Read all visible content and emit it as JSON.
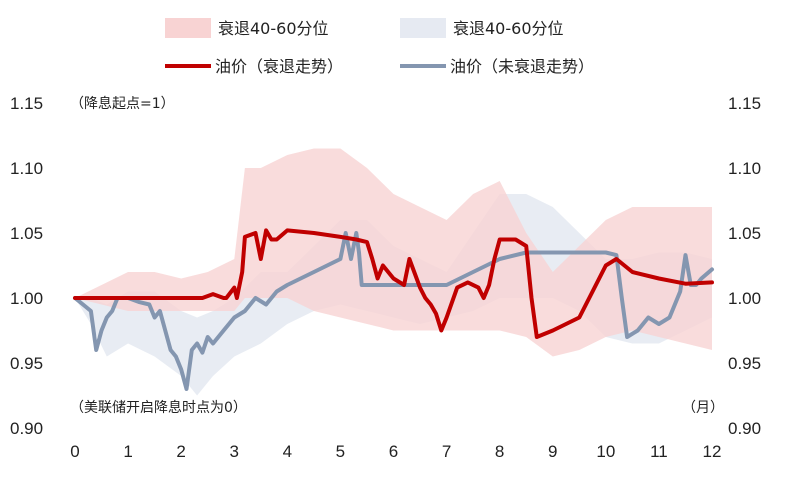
{
  "chart_data": {
    "type": "area",
    "title": "",
    "xlabel": "",
    "ylabel": "",
    "x_unit_label": "（月）",
    "y_note": "（降息起点=1）",
    "x_note": "（美联储开启降息时点为0）",
    "xlim": [
      0,
      12
    ],
    "ylim": [
      0.9,
      1.15
    ],
    "x_ticks": [
      "0",
      "1",
      "2",
      "3",
      "4",
      "5",
      "6",
      "7",
      "8",
      "9",
      "10",
      "11",
      "12"
    ],
    "y_ticks": [
      "0.90",
      "0.95",
      "1.00",
      "1.05",
      "1.10",
      "1.15"
    ],
    "grid": false,
    "legend_position": "top-center",
    "legend": [
      {
        "label": "衰退40-60分位",
        "kind": "band",
        "color": "#f8d3d3"
      },
      {
        "label": "衰退40-60分位",
        "kind": "band",
        "color": "#e6eaf2"
      },
      {
        "label": "油价（衰退走势）",
        "kind": "line",
        "color": "#c00000"
      },
      {
        "label": "油价（未衰退走势）",
        "kind": "line",
        "color": "#8496b0"
      }
    ],
    "bands": [
      {
        "name": "衰退40-60分位",
        "color": "#f8d3d3",
        "x": [
          0,
          0.5,
          1.0,
          1.5,
          2.0,
          2.5,
          3.0,
          3.2,
          3.5,
          4.0,
          4.5,
          5.0,
          5.5,
          6.0,
          6.5,
          7.0,
          7.5,
          8.0,
          8.5,
          9.0,
          9.5,
          10.0,
          10.5,
          11.0,
          11.5,
          12.0
        ],
        "upper": [
          1.0,
          1.01,
          1.02,
          1.02,
          1.015,
          1.02,
          1.03,
          1.1,
          1.1,
          1.11,
          1.115,
          1.115,
          1.1,
          1.08,
          1.07,
          1.06,
          1.08,
          1.09,
          1.05,
          1.02,
          1.04,
          1.06,
          1.07,
          1.07,
          1.07,
          1.07
        ],
        "lower": [
          1.0,
          0.995,
          0.99,
          0.99,
          0.99,
          0.99,
          0.99,
          1.0,
          1.0,
          1.0,
          0.99,
          0.985,
          0.98,
          0.975,
          0.975,
          0.975,
          0.975,
          0.975,
          0.97,
          0.955,
          0.96,
          0.97,
          0.975,
          0.97,
          0.965,
          0.96
        ]
      },
      {
        "name": "衰退40-60分位",
        "color": "#e6eaf2",
        "x": [
          0,
          0.3,
          0.6,
          1.0,
          1.5,
          2.0,
          2.3,
          2.6,
          3.0,
          3.5,
          4.0,
          4.5,
          5.0,
          5.5,
          6.0,
          6.5,
          7.0,
          7.5,
          8.0,
          8.5,
          9.0,
          9.5,
          10.0,
          10.5,
          11.0,
          11.5,
          12.0
        ],
        "upper": [
          1.0,
          1.0,
          0.995,
          1.005,
          1.005,
          0.99,
          0.985,
          0.99,
          1.0,
          1.02,
          1.02,
          1.04,
          1.06,
          1.06,
          1.04,
          1.03,
          1.02,
          1.05,
          1.08,
          1.08,
          1.07,
          1.05,
          1.03,
          1.03,
          1.035,
          1.035,
          1.03
        ],
        "lower": [
          1.0,
          0.98,
          0.955,
          0.965,
          0.955,
          0.94,
          0.925,
          0.94,
          0.955,
          0.965,
          0.98,
          0.99,
          0.995,
          0.99,
          0.985,
          0.98,
          0.985,
          0.99,
          1.0,
          1.0,
          1.0,
          0.99,
          0.97,
          0.965,
          0.965,
          0.975,
          0.985
        ]
      }
    ],
    "series": [
      {
        "name": "油价（衰退走势）",
        "color": "#c00000",
        "x": [
          0,
          1,
          2,
          2.2,
          2.4,
          2.6,
          2.8,
          2.85,
          3.0,
          3.05,
          3.15,
          3.2,
          3.4,
          3.5,
          3.6,
          3.7,
          3.8,
          4.0,
          4.5,
          5.0,
          5.3,
          5.5,
          5.6,
          5.7,
          5.8,
          6.0,
          6.2,
          6.3,
          6.5,
          6.6,
          6.7,
          6.8,
          6.9,
          7.0,
          7.2,
          7.4,
          7.6,
          7.7,
          7.8,
          7.9,
          8.0,
          8.1,
          8.3,
          8.5,
          8.6,
          8.7,
          9.0,
          9.5,
          10.0,
          10.2,
          10.5,
          11.0,
          11.5,
          12.0
        ],
        "y": [
          1.0,
          1.0,
          1.0,
          1.0,
          1.0,
          1.003,
          1.0,
          1.0,
          1.008,
          1.0,
          1.02,
          1.047,
          1.05,
          1.03,
          1.052,
          1.045,
          1.045,
          1.052,
          1.05,
          1.047,
          1.045,
          1.043,
          1.03,
          1.015,
          1.025,
          1.015,
          1.01,
          1.03,
          1.008,
          1.0,
          0.995,
          0.988,
          0.975,
          0.985,
          1.008,
          1.012,
          1.008,
          1.0,
          1.01,
          1.03,
          1.045,
          1.045,
          1.045,
          1.04,
          1.0,
          0.97,
          0.975,
          0.985,
          1.025,
          1.03,
          1.02,
          1.015,
          1.011,
          1.012
        ]
      },
      {
        "name": "油价（未衰退走势）",
        "color": "#8496b0",
        "x": [
          0,
          0.15,
          0.3,
          0.4,
          0.5,
          0.6,
          0.7,
          0.8,
          0.9,
          1.0,
          1.2,
          1.4,
          1.5,
          1.6,
          1.8,
          1.9,
          2.0,
          2.1,
          2.2,
          2.3,
          2.4,
          2.5,
          2.6,
          2.8,
          3.0,
          3.2,
          3.4,
          3.6,
          3.8,
          4.0,
          4.5,
          5.0,
          5.1,
          5.2,
          5.3,
          5.35,
          5.4,
          5.5,
          6.0,
          6.5,
          7.0,
          7.5,
          8.0,
          8.5,
          9.0,
          9.5,
          10.0,
          10.2,
          10.3,
          10.4,
          10.6,
          10.8,
          11.0,
          11.2,
          11.4,
          11.5,
          11.6,
          11.7,
          11.8,
          12.0
        ],
        "y": [
          1.0,
          0.995,
          0.99,
          0.96,
          0.975,
          0.985,
          0.99,
          1.0,
          1.0,
          1.0,
          0.997,
          0.995,
          0.985,
          0.99,
          0.96,
          0.955,
          0.945,
          0.93,
          0.96,
          0.965,
          0.958,
          0.97,
          0.965,
          0.975,
          0.985,
          0.99,
          1.0,
          0.995,
          1.005,
          1.01,
          1.02,
          1.03,
          1.05,
          1.03,
          1.05,
          1.035,
          1.01,
          1.01,
          1.01,
          1.01,
          1.01,
          1.02,
          1.03,
          1.035,
          1.035,
          1.035,
          1.035,
          1.033,
          1.0,
          0.97,
          0.975,
          0.985,
          0.98,
          0.985,
          1.005,
          1.033,
          1.01,
          1.01,
          1.015,
          1.022
        ]
      }
    ]
  }
}
